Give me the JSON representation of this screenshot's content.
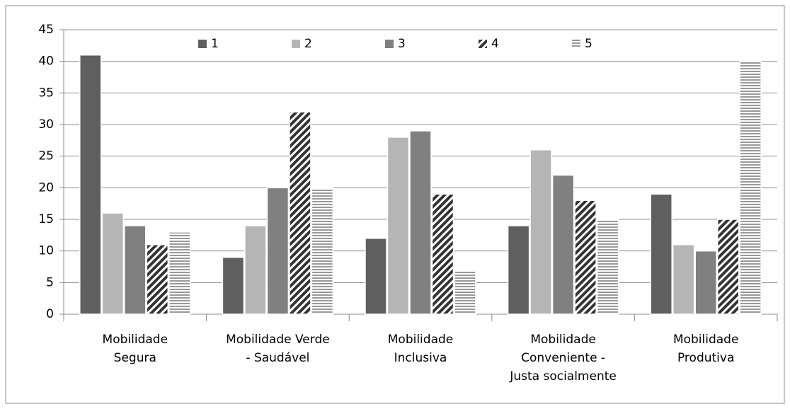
{
  "chart_data": {
    "type": "bar",
    "categories": [
      "Mobilidade\nSegura",
      "Mobilidade Verde\n- Saudável",
      "Mobilidade\nInclusiva",
      "Mobilidade\nConveniente -\nJusta socialmente",
      "Mobilidade\nProdutiva"
    ],
    "series": [
      {
        "name": "1",
        "color": "#5f5f5f",
        "pattern": "solid",
        "values": [
          41,
          9,
          12,
          14,
          19
        ]
      },
      {
        "name": "2",
        "color": "#b5b5b5",
        "pattern": "solid",
        "values": [
          16,
          14,
          28,
          26,
          11
        ]
      },
      {
        "name": "3",
        "color": "#808080",
        "pattern": "solid",
        "values": [
          14,
          20,
          29,
          22,
          10
        ]
      },
      {
        "name": "4",
        "color": "#333333",
        "pattern": "diagonal",
        "values": [
          11,
          32,
          19,
          18,
          15
        ]
      },
      {
        "name": "5",
        "color": "#999999",
        "pattern": "horizontal",
        "values": [
          13,
          20,
          7,
          15,
          40
        ]
      }
    ],
    "ylim": [
      0,
      45
    ],
    "yticks": [
      0,
      5,
      10,
      15,
      20,
      25,
      30,
      35,
      40,
      45
    ],
    "grid": true,
    "legend": "top"
  }
}
